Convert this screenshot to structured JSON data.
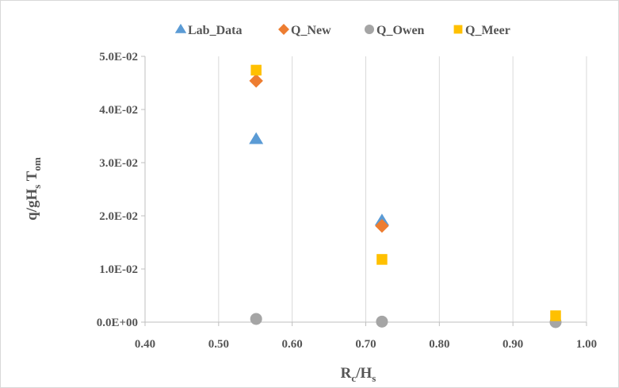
{
  "chart_data": {
    "type": "scatter",
    "title": "",
    "xlabel": {
      "main": "R",
      "sub1": "c",
      "mid": "/H",
      "sub2": "s"
    },
    "ylabel": {
      "main": "q/gH",
      "sub1": "s",
      "mid": " T",
      "sub2": "om"
    },
    "xlim": [
      0.4,
      1.0
    ],
    "ylim": [
      0,
      0.05
    ],
    "x_ticks": [
      0.4,
      0.5,
      0.6,
      0.7,
      0.8,
      0.9,
      1.0
    ],
    "x_tick_labels": [
      "0.40",
      "0.50",
      "0.60",
      "0.70",
      "0.80",
      "0.90",
      "1.00"
    ],
    "y_ticks": [
      0,
      0.01,
      0.02,
      0.03,
      0.04,
      0.05
    ],
    "y_tick_labels": [
      "0.0E+00",
      "1.0E-02",
      "2.0E-02",
      "3.0E-02",
      "4.0E-02",
      "5.0E-02"
    ],
    "grid": {
      "vertical": true,
      "horizontal": false
    },
    "legend_position": "top",
    "series": [
      {
        "name": "Lab_Data",
        "marker": "triangle",
        "color": "#5B9BD5",
        "points": [
          {
            "x": 0.551,
            "y": 0.0344
          },
          {
            "x": 0.722,
            "y": 0.0191
          }
        ]
      },
      {
        "name": "Q_New",
        "marker": "diamond",
        "color": "#ED7D31",
        "points": [
          {
            "x": 0.551,
            "y": 0.0454
          },
          {
            "x": 0.722,
            "y": 0.0181
          }
        ]
      },
      {
        "name": "Q_Owen",
        "marker": "circle",
        "color": "#A5A5A5",
        "points": [
          {
            "x": 0.551,
            "y": 0.0006
          },
          {
            "x": 0.722,
            "y": 0.0001
          },
          {
            "x": 0.958,
            "y": 0.0
          }
        ]
      },
      {
        "name": "Q_Meer",
        "marker": "square",
        "color": "#FFC000",
        "points": [
          {
            "x": 0.551,
            "y": 0.0474
          },
          {
            "x": 0.722,
            "y": 0.0118
          },
          {
            "x": 0.958,
            "y": 0.0012
          }
        ]
      }
    ]
  }
}
